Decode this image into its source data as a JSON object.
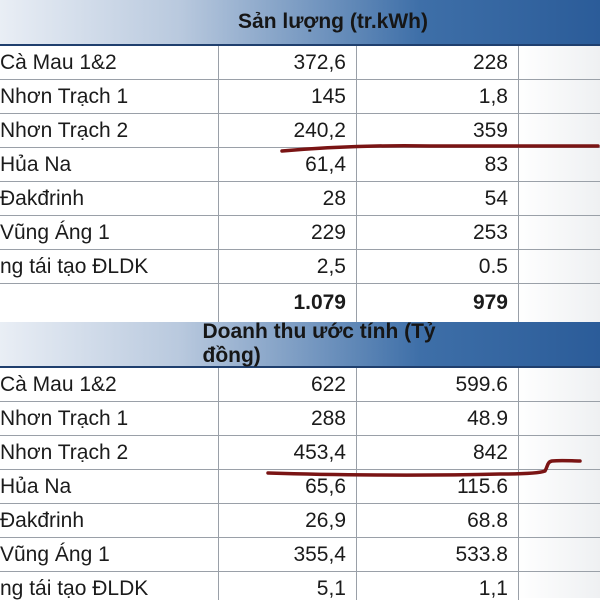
{
  "section1": {
    "title": "Sản lượng (tr.kWh)",
    "rows": [
      {
        "name": "Cà Mau 1&2",
        "a": "372,6",
        "b": "228"
      },
      {
        "name": "Nhơn Trạch  1",
        "a": "145",
        "b": "1,8"
      },
      {
        "name": "Nhơn Trạch  2",
        "a": "240,2",
        "b": "359"
      },
      {
        "name": "Hủa Na",
        "a": "61,4",
        "b": "83"
      },
      {
        "name": "Đakđrinh",
        "a": "28",
        "b": "54"
      },
      {
        "name": "Vũng Áng 1",
        "a": "229",
        "b": "253"
      },
      {
        "name": "ng tái tạo ĐLDK",
        "a": "2,5",
        "b": "0.5"
      }
    ],
    "total": {
      "name": "",
      "a": "1.079",
      "b": "979"
    }
  },
  "section2": {
    "title": "Doanh thu ước tính (Tỷ đồng)",
    "rows": [
      {
        "name": "Cà Mau 1&2",
        "a": "622",
        "b": "599.6"
      },
      {
        "name": "Nhơn Trạch  1",
        "a": "288",
        "b": "48.9"
      },
      {
        "name": "Nhơn Trạch  2",
        "a": "453,4",
        "b": "842"
      },
      {
        "name": "Hủa Na",
        "a": "65,6",
        "b": "115.6"
      },
      {
        "name": "Đakđrinh",
        "a": "26,9",
        "b": "68.8"
      },
      {
        "name": "Vũng Áng 1",
        "a": "355,4",
        "b": "533.8"
      },
      {
        "name": "ng tái tạo ĐLDK",
        "a": "5,1",
        "b": "1,1"
      }
    ]
  },
  "annotation_color": "#7a1414"
}
